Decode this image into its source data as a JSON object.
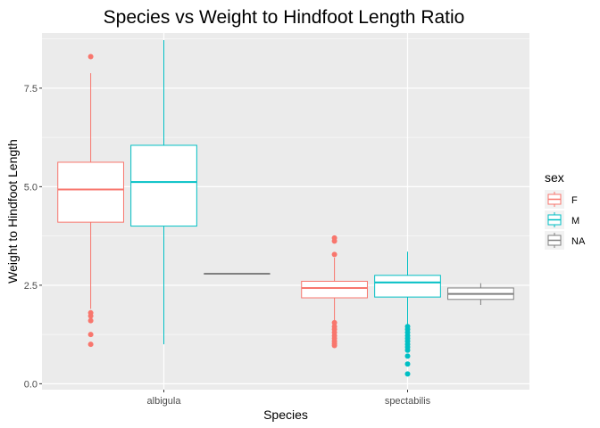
{
  "chart_data": {
    "type": "boxplot",
    "title": "Species vs Weight to Hindfoot Length Ratio",
    "xlabel": "Species",
    "ylabel": "Weight to Hindfoot Length",
    "categories": [
      "albigula",
      "spectabilis"
    ],
    "ylim": [
      -0.15,
      8.9
    ],
    "yticks": [
      0.0,
      2.5,
      5.0,
      7.5
    ],
    "ytick_labels": [
      "0.0",
      "2.5",
      "5.0",
      "7.5"
    ],
    "grid": true,
    "legend": {
      "title": "sex",
      "position": "right",
      "entries": [
        "F",
        "M",
        "NA"
      ]
    },
    "series": [
      {
        "name": "F",
        "color": "#F8766D",
        "boxes": [
          {
            "category": "albigula",
            "low": 1.9,
            "q1": 4.1,
            "median": 4.93,
            "q3": 5.62,
            "high": 7.88,
            "outliers": [
              8.3,
              1.8,
              1.72,
              1.6,
              1.25,
              1.0
            ]
          },
          {
            "category": "spectabilis",
            "low": 1.6,
            "q1": 2.18,
            "median": 2.43,
            "q3": 2.6,
            "high": 3.2,
            "outliers": [
              3.7,
              3.62,
              3.28,
              1.55,
              1.45,
              1.38,
              1.3,
              1.22,
              1.15,
              1.08,
              1.02,
              0.97
            ]
          }
        ]
      },
      {
        "name": "M",
        "color": "#00BFC4",
        "boxes": [
          {
            "category": "albigula",
            "low": 1.0,
            "q1": 4.0,
            "median": 5.12,
            "q3": 6.05,
            "high": 8.72,
            "outliers": []
          },
          {
            "category": "spectabilis",
            "low": 1.5,
            "q1": 2.2,
            "median": 2.57,
            "q3": 2.75,
            "high": 3.35,
            "outliers": [
              1.45,
              1.38,
              1.3,
              1.22,
              1.15,
              1.08,
              1.0,
              0.93,
              0.85,
              0.7,
              0.5,
              0.25
            ]
          }
        ]
      },
      {
        "name": "NA",
        "color": "#7F7F7F",
        "boxes": [
          {
            "category": "albigula",
            "low": 2.79,
            "q1": 2.79,
            "median": 2.79,
            "q3": 2.79,
            "high": 2.79,
            "outliers": []
          },
          {
            "category": "spectabilis",
            "low": 2.0,
            "q1": 2.14,
            "median": 2.28,
            "q3": 2.43,
            "high": 2.55,
            "outliers": []
          }
        ]
      }
    ]
  }
}
